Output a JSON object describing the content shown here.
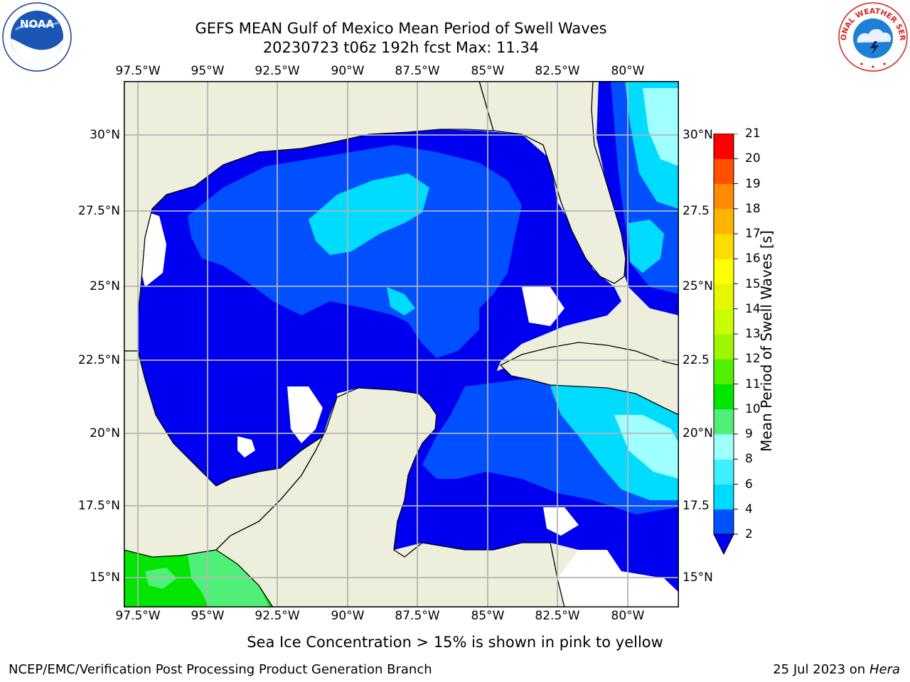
{
  "title": {
    "line1": "GEFS MEAN Gulf of Mexico Mean Period of Swell Waves",
    "line2": "20230723 t06z 192h fcst   Max: 11.34"
  },
  "map": {
    "lon_labels": [
      "97.5°W",
      "95°W",
      "92.5°W",
      "90°W",
      "87.5°W",
      "85°W",
      "82.5°W",
      "80°W"
    ],
    "lat_labels_left": [
      "30°N",
      "27.5°N",
      "25°N",
      "22.5°N",
      "20°N",
      "17.5°N",
      "15°N"
    ],
    "lat_labels_right": [
      "30°N",
      "27.5",
      "25°N",
      "22.5",
      "20°N",
      "17.5",
      "15°N"
    ]
  },
  "colorbar": {
    "label": "Mean Period of Swell Waves [s]",
    "levels": [
      "2",
      "4",
      "6",
      "8",
      "9",
      "10",
      "11",
      "12",
      "13",
      "14",
      "15",
      "16",
      "17",
      "18",
      "19",
      "20",
      "21"
    ],
    "colors": [
      "#0050ff",
      "#00dcff",
      "#3cf0ff",
      "#a0ffff",
      "#50f078",
      "#00e600",
      "#50f000",
      "#a0f500",
      "#c8ff00",
      "#e6f500",
      "#ffff00",
      "#ffdc00",
      "#ffb400",
      "#ff8c00",
      "#ff5000",
      "#ff0000"
    ],
    "extend_color": "#0000f0"
  },
  "legend": {
    "bins": [
      {
        "range": "< 2",
        "color": "#0000f0"
      },
      {
        "range": "2-4",
        "color": "#0050ff"
      },
      {
        "range": "4-6",
        "color": "#00dcff"
      },
      {
        "range": "6-8",
        "color": "#3cf0ff"
      },
      {
        "range": "8-9",
        "color": "#a0ffff"
      },
      {
        "range": "9-10",
        "color": "#50f078"
      },
      {
        "range": "10-11",
        "color": "#00e600"
      }
    ]
  },
  "colors": {
    "land": "#eeeedc",
    "grid": "#b4b4b4",
    "deep_blue": "#0000f0",
    "mid_blue": "#0050ff",
    "cyan": "#00dcff",
    "light_cyan": "#a0ffff"
  },
  "note": "Sea Ice Concentration > 15% is shown in pink to yellow",
  "footer": {
    "left": "NCEP/EMC/Verification Post Processing Product Generation Branch",
    "date": "25 Jul 2023 on ",
    "machine": "Hera"
  },
  "logos": {
    "noaa": "NOAA",
    "nws": "NATIONAL WEATHER SERVICE"
  }
}
